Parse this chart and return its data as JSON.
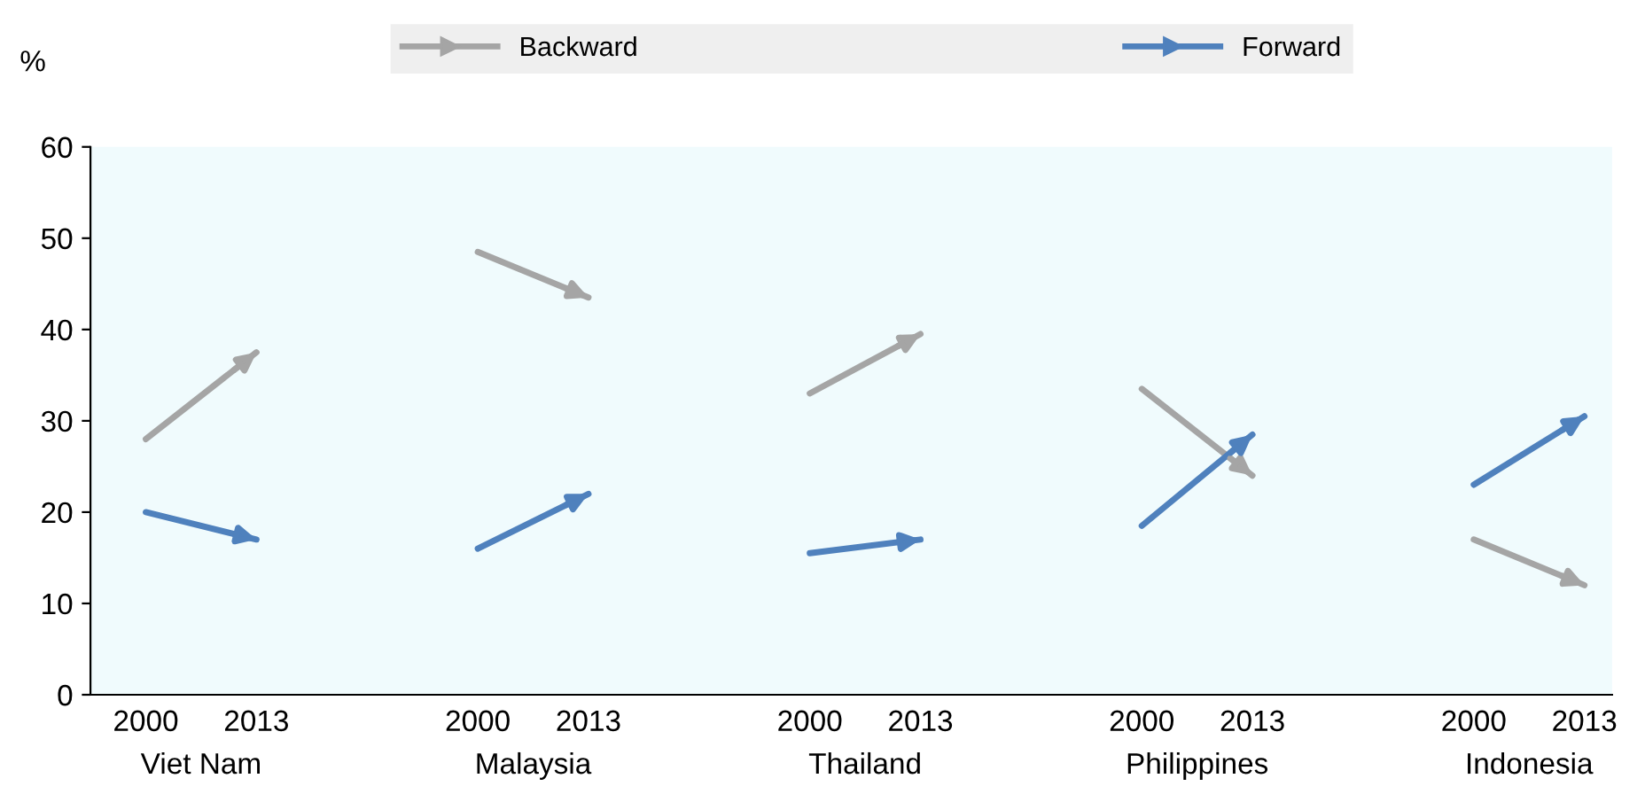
{
  "chart_data": {
    "type": "line",
    "ylabel": "%",
    "categories": [
      "2000",
      "2013",
      null,
      "2000",
      "2013",
      null,
      "2000",
      "2013",
      null,
      "2000",
      "2013",
      null,
      "2000",
      "2013"
    ],
    "annotations": [
      "Viet Nam",
      "Malaysia",
      "Thailand",
      "Philippines",
      "Indonesia"
    ],
    "series": [
      {
        "name": "Backward",
        "color": "#a5a5a5",
        "values": [
          28,
          37.5,
          null,
          48.5,
          43.5,
          null,
          33,
          39.5,
          null,
          33.5,
          24,
          null,
          17,
          12
        ]
      },
      {
        "name": "Forward",
        "color": "#4f81bd",
        "values": [
          20,
          17,
          null,
          16,
          22,
          null,
          15.5,
          17,
          null,
          18.5,
          28.5,
          null,
          23,
          30.5
        ]
      }
    ],
    "ylim": [
      0,
      60
    ],
    "yticks": [
      0,
      10,
      20,
      30,
      40,
      50,
      60
    ],
    "grid": false,
    "legend": "top",
    "line_style": "solid"
  }
}
